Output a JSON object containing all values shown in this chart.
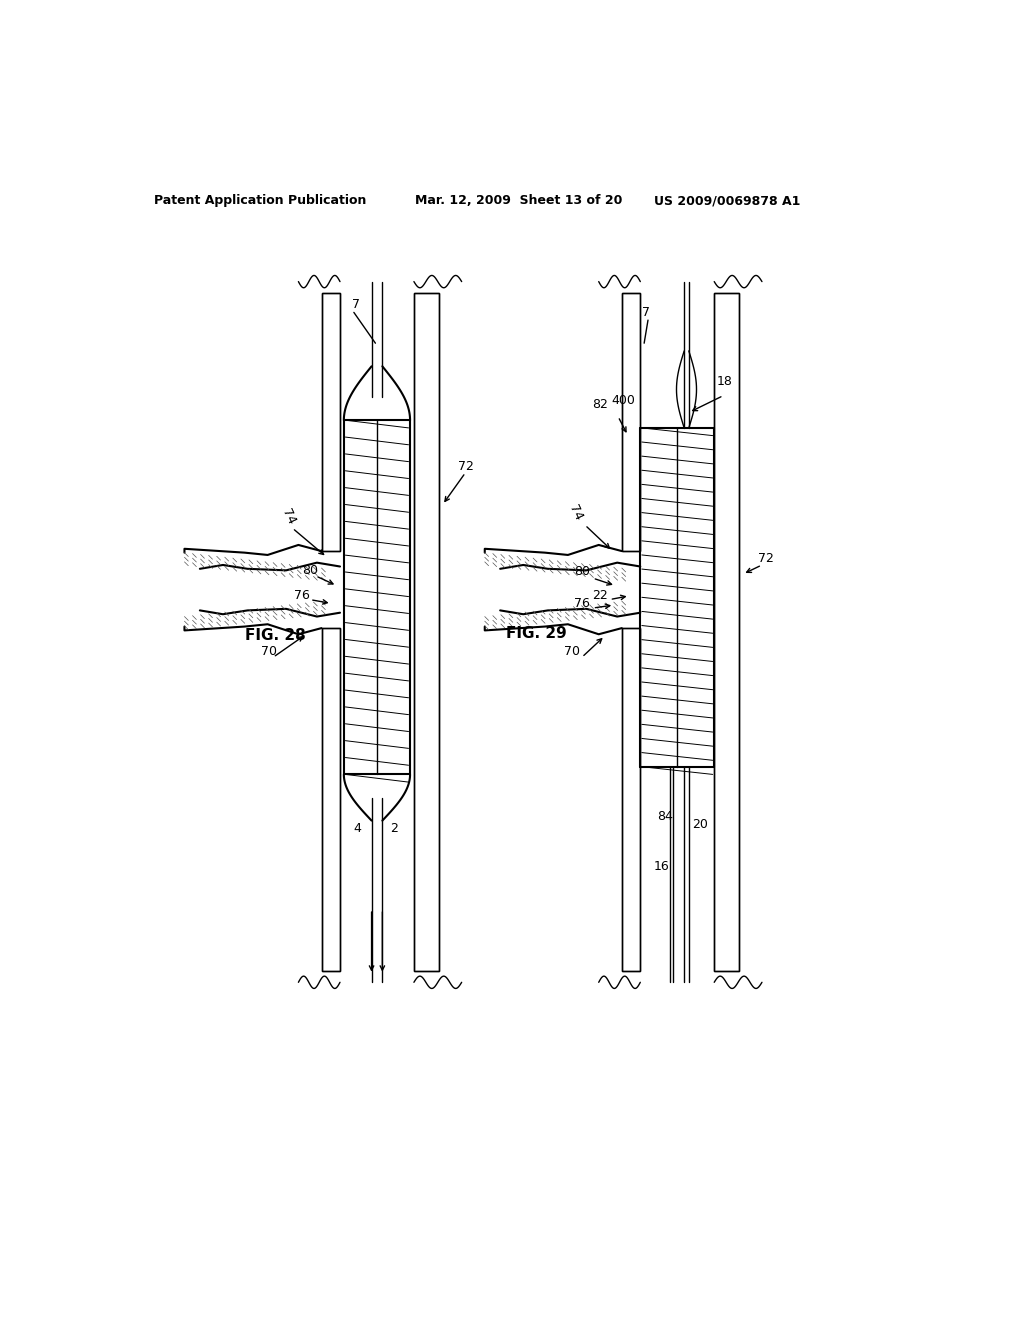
{
  "header_left": "Patent Application Publication",
  "header_mid": "Mar. 12, 2009  Sheet 13 of 20",
  "header_right": "US 2009/0069878 A1",
  "bg_color": "#ffffff"
}
